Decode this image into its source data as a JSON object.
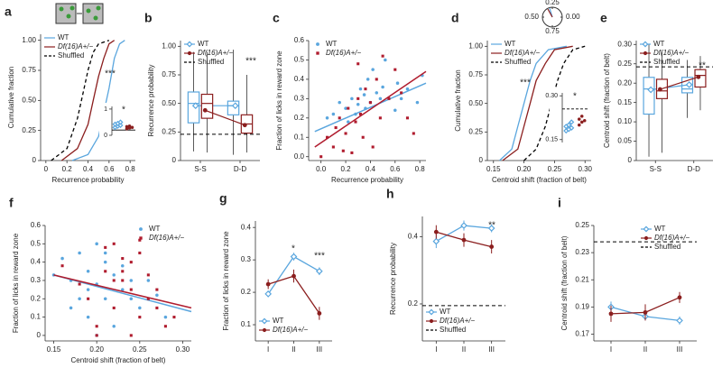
{
  "chart_data": [
    {
      "type": "line",
      "panel_label": "a",
      "xlabel": "Recurrence probability",
      "ylabel": "Cumulative fraction",
      "xlim": [
        -0.05,
        0.85
      ],
      "xticks": [
        0,
        0.2,
        0.4,
        0.6,
        0.8
      ],
      "ylim": [
        0,
        1.05
      ],
      "yticks": [
        0,
        0.25,
        {
          "value": 0.5,
          "label": "0.50"
        },
        0.75,
        {
          "value": 1,
          "label": "1.00"
        }
      ],
      "legend": "upper left",
      "annotations": [
        "***"
      ],
      "series": [
        {
          "name": "WT",
          "color": "#5aa6de",
          "x": [
            0.25,
            0.4,
            0.5,
            0.55,
            0.6,
            0.65,
            0.7,
            0.75
          ],
          "values": [
            0,
            0.05,
            0.2,
            0.4,
            0.6,
            0.85,
            0.97,
            1
          ]
        },
        {
          "name": "Df(16)A+/−",
          "color": "#8b1e1e",
          "x": [
            0.15,
            0.3,
            0.4,
            0.45,
            0.5,
            0.55,
            0.6,
            0.65
          ],
          "values": [
            0,
            0.1,
            0.3,
            0.5,
            0.7,
            0.85,
            0.97,
            1
          ]
        },
        {
          "name": "Shuffled",
          "color": "#000000",
          "style": "dashed",
          "x": [
            0.05,
            0.2,
            0.3,
            0.35,
            0.4,
            0.45,
            0.5,
            0.6
          ],
          "values": [
            0,
            0.1,
            0.35,
            0.55,
            0.75,
            0.9,
            0.97,
            1
          ]
        }
      ]
    },
    {
      "type": "strip",
      "ylim": [
        0,
        1.1
      ],
      "yticks": [
        0,
        1
      ],
      "reference": 0.2,
      "annotations": [
        "*"
      ],
      "series": [
        {
          "color": "#5aa6de",
          "marker": "diamond",
          "values": [
            0.3,
            0.35,
            0.38,
            0.42,
            0.45,
            0.5
          ]
        },
        {
          "color": "#8b1e1e",
          "marker": "circle",
          "values": [
            0.25,
            0.28,
            0.3,
            0.33,
            0.35
          ]
        }
      ]
    },
    {
      "type": "box",
      "panel_label": "b",
      "ylabel": "Recurrence probability",
      "categories": [
        "S-S",
        "D-D"
      ],
      "ylim": [
        0,
        1.05
      ],
      "yticks": [
        0,
        0.25,
        {
          "value": 0.5,
          "label": "0.50"
        },
        0.75,
        {
          "value": 1,
          "label": "1.00"
        }
      ],
      "legend": "upper left",
      "annotations": [
        "***"
      ],
      "series": [
        {
          "name": "WT",
          "color": "#5aa6de",
          "marker": "diamond",
          "means": [
            0.48,
            0.48
          ],
          "boxes": [
            {
              "min": 0.08,
              "q1": 0.33,
              "median": 0.5,
              "q3": 0.6,
              "max": 0.95
            },
            {
              "min": 0.05,
              "q1": 0.4,
              "median": 0.48,
              "q3": 0.52,
              "max": 0.97
            }
          ]
        },
        {
          "name": "Df(16)A+/−",
          "color": "#8b1e1e",
          "marker": "circle",
          "means": [
            0.44,
            0.31
          ],
          "boxes": [
            {
              "min": 0.07,
              "q1": 0.37,
              "median": 0.5,
              "q3": 0.58,
              "max": 0.95
            },
            {
              "min": 0.07,
              "q1": 0.24,
              "median": 0.32,
              "q3": 0.4,
              "max": 0.75
            }
          ]
        },
        {
          "name": "Shuffled",
          "color": "#000000",
          "style": "dashed",
          "hline": 0.23
        }
      ]
    },
    {
      "type": "scatter",
      "panel_label": "c",
      "xlabel": "Recurrence probability",
      "ylabel": "Fraction of licks in reward zone",
      "xlim": [
        -0.1,
        0.85
      ],
      "xticks": [
        {
          "value": 0,
          "label": "0.0"
        },
        0.2,
        0.4,
        0.6,
        0.8
      ],
      "ylim": [
        -0.02,
        0.6
      ],
      "yticks": [
        {
          "value": 0,
          "label": "0.0"
        },
        0.1,
        0.2,
        0.3,
        0.4,
        0.5,
        0.6
      ],
      "legend": "upper left",
      "series": [
        {
          "name": "WT",
          "color": "#5aa6de",
          "marker": "circle",
          "x": [
            0.05,
            0.1,
            0.15,
            0.2,
            0.22,
            0.25,
            0.28,
            0.3,
            0.32,
            0.35,
            0.36,
            0.38,
            0.4,
            0.42,
            0.45,
            0.48,
            0.5,
            0.52,
            0.55,
            0.6,
            0.62,
            0.65,
            0.7,
            0.78,
            0.82
          ],
          "values": [
            0.2,
            0.22,
            0.28,
            0.25,
            0.18,
            0.3,
            0.22,
            0.27,
            0.35,
            0.32,
            0.25,
            0.4,
            0.28,
            0.45,
            0.33,
            0.3,
            0.36,
            0.5,
            0.3,
            0.24,
            0.38,
            0.3,
            0.35,
            0.28,
            0.42
          ],
          "fit": {
            "x": [
              -0.05,
              0.85
            ],
            "y": [
              0.13,
              0.38
            ]
          }
        },
        {
          "name": "Df(16)A+/−",
          "color": "#b01c2e",
          "marker": "square",
          "x": [
            0.0,
            0.05,
            0.1,
            0.12,
            0.15,
            0.18,
            0.2,
            0.22,
            0.25,
            0.28,
            0.3,
            0.32,
            0.34,
            0.36,
            0.4,
            0.42,
            0.45,
            0.48,
            0.5,
            0.55,
            0.6,
            0.65,
            0.7,
            0.75,
            0.3
          ],
          "values": [
            0.0,
            0.1,
            0.05,
            0.15,
            0.2,
            0.03,
            0.12,
            0.25,
            0.02,
            0.18,
            0.3,
            0.22,
            0.1,
            0.35,
            0.28,
            0.05,
            0.4,
            0.2,
            0.52,
            0.3,
            0.45,
            0.33,
            0.2,
            0.12,
            0.48
          ],
          "fit": {
            "x": [
              -0.05,
              0.85
            ],
            "y": [
              0.05,
              0.44
            ]
          }
        }
      ]
    },
    {
      "type": "line",
      "panel_label": "d",
      "xlabel": "Centroid shift (fraction of belt)",
      "ylabel": "Cumulative fraction",
      "xlim": [
        0.14,
        0.31
      ],
      "xticks": [
        0.15,
        {
          "value": 0.2,
          "label": "0.20"
        },
        0.25,
        {
          "value": 0.3,
          "label": "0.30"
        }
      ],
      "ylim": [
        0,
        1.05
      ],
      "yticks": [
        0,
        0.25,
        {
          "value": 0.5,
          "label": "0.50"
        },
        0.75,
        {
          "value": 1,
          "label": "1.00"
        }
      ],
      "legend": "upper left",
      "annotations": [
        "***"
      ],
      "series": [
        {
          "name": "WT",
          "color": "#5aa6de",
          "x": [
            0.16,
            0.18,
            0.19,
            0.2,
            0.21,
            0.22,
            0.24,
            0.27
          ],
          "values": [
            0,
            0.1,
            0.3,
            0.5,
            0.7,
            0.85,
            0.97,
            1
          ]
        },
        {
          "name": "Df(16)A+/−",
          "color": "#8b1e1e",
          "x": [
            0.165,
            0.19,
            0.2,
            0.21,
            0.22,
            0.235,
            0.25,
            0.28
          ],
          "values": [
            0,
            0.1,
            0.3,
            0.5,
            0.7,
            0.85,
            0.97,
            1
          ]
        },
        {
          "name": "Shuffled",
          "color": "#000000",
          "style": "dashed",
          "x": [
            0.2,
            0.22,
            0.235,
            0.245,
            0.255,
            0.265,
            0.28,
            0.3
          ],
          "values": [
            0,
            0.1,
            0.3,
            0.5,
            0.7,
            0.85,
            0.97,
            1
          ]
        }
      ]
    },
    {
      "type": "polar",
      "ticks": [
        {
          "value": 0,
          "label": "0.00"
        },
        0.25,
        {
          "value": 0.5,
          "label": "0.50"
        },
        0.75
      ]
    },
    {
      "type": "strip",
      "ylim": [
        0.14,
        0.31
      ],
      "yticks": [
        0.15,
        {
          "value": 0.3,
          "label": "0.30"
        }
      ],
      "reference": 0.255,
      "reference_style": "dashed",
      "annotations": [
        "*"
      ],
      "series": [
        {
          "color": "#5aa6de",
          "marker": "diamond",
          "values": [
            0.18,
            0.185,
            0.19,
            0.195,
            0.2,
            0.21
          ]
        },
        {
          "color": "#8b1e1e",
          "marker": "circle",
          "values": [
            0.2,
            0.21,
            0.215,
            0.22,
            0.23
          ]
        }
      ]
    },
    {
      "type": "box",
      "panel_label": "e",
      "ylabel": "Centroid shift (fraction of belt)",
      "categories": [
        "S-S",
        "D-D"
      ],
      "ylim": [
        0,
        0.31
      ],
      "yticks": [
        0,
        0.05,
        {
          "value": 0.1,
          "label": "0.10"
        },
        0.15,
        {
          "value": 0.2,
          "label": "0.20"
        },
        0.25,
        {
          "value": 0.3,
          "label": "0.30"
        }
      ],
      "legend": "upper left",
      "annotations": [
        "**"
      ],
      "series": [
        {
          "name": "WT",
          "color": "#5aa6de",
          "marker": "diamond",
          "means": [
            0.183,
            0.196
          ],
          "boxes": [
            {
              "min": 0.01,
              "q1": 0.12,
              "median": 0.185,
              "q3": 0.215,
              "max": 0.3
            },
            {
              "min": 0.11,
              "q1": 0.175,
              "median": 0.185,
              "q3": 0.215,
              "max": 0.26
            }
          ]
        },
        {
          "name": "Df(16)A+/−",
          "color": "#8b1e1e",
          "marker": "circle",
          "means": [
            0.184,
            0.216
          ],
          "boxes": [
            {
              "min": 0.02,
              "q1": 0.16,
              "median": 0.18,
              "q3": 0.21,
              "max": 0.28
            },
            {
              "min": 0.13,
              "q1": 0.19,
              "median": 0.22,
              "q3": 0.235,
              "max": 0.27
            }
          ]
        },
        {
          "name": "Shuffled",
          "color": "#000000",
          "style": "dashed",
          "hline": 0.242
        }
      ]
    },
    {
      "type": "scatter",
      "panel_label": "f",
      "xlabel": "Centroid shift (fraction of belt)",
      "ylabel": "Fraction of licks in reward zone",
      "xlim": [
        0.14,
        0.31
      ],
      "xticks": [
        0.15,
        {
          "value": 0.2,
          "label": "0.20"
        },
        0.25,
        {
          "value": 0.3,
          "label": "0.30"
        }
      ],
      "ylim": [
        -0.03,
        0.6
      ],
      "yticks": [
        0,
        0.1,
        0.2,
        0.3,
        0.4,
        0.5,
        0.6
      ],
      "legend": "upper right",
      "series": [
        {
          "name": "WT",
          "color": "#5aa6de",
          "marker": "circle",
          "x": [
            0.15,
            0.16,
            0.17,
            0.18,
            0.18,
            0.19,
            0.19,
            0.2,
            0.2,
            0.21,
            0.21,
            0.22,
            0.22,
            0.23,
            0.23,
            0.24,
            0.25,
            0.26,
            0.27,
            0.28,
            0.19,
            0.2,
            0.17,
            0.21,
            0.24
          ],
          "values": [
            0.33,
            0.42,
            0.3,
            0.45,
            0.2,
            0.35,
            0.1,
            0.5,
            0.28,
            0.4,
            0.2,
            0.33,
            0.05,
            0.25,
            0.38,
            0.2,
            0.15,
            0.3,
            0.22,
            0.1,
            0.25,
            0.0,
            0.15,
            0.45,
            0.3
          ],
          "fit": {
            "x": [
              0.15,
              0.31
            ],
            "y": [
              0.33,
              0.13
            ]
          }
        },
        {
          "name": "Df(16)A+/−",
          "color": "#b01c2e",
          "marker": "square",
          "x": [
            0.16,
            0.18,
            0.19,
            0.2,
            0.21,
            0.22,
            0.22,
            0.23,
            0.23,
            0.24,
            0.24,
            0.25,
            0.25,
            0.26,
            0.26,
            0.27,
            0.28,
            0.29,
            0.2,
            0.21,
            0.22,
            0.24,
            0.25,
            0.23,
            0.27
          ],
          "values": [
            0.38,
            0.28,
            0.2,
            0.05,
            0.35,
            0.5,
            0.15,
            0.42,
            0.3,
            0.25,
            0.4,
            0.52,
            0.1,
            0.33,
            0.2,
            0.25,
            0.05,
            0.1,
            0.0,
            0.48,
            0.3,
            0.0,
            0.45,
            0.35,
            0.15
          ],
          "fit": {
            "x": [
              0.15,
              0.31
            ],
            "y": [
              0.33,
              0.15
            ]
          }
        }
      ]
    },
    {
      "type": "line",
      "panel_label": "g",
      "ylabel": "Fraction of licks in reward zone",
      "categories": [
        "I",
        "II",
        "III"
      ],
      "ylim": [
        0.05,
        0.42
      ],
      "yticks": [
        0.1,
        0.2,
        0.3,
        0.4
      ],
      "legend": "lower left",
      "annotations": [
        "*",
        "***"
      ],
      "series": [
        {
          "name": "WT",
          "color": "#5aa6de",
          "marker": "diamond",
          "values": [
            0.195,
            0.31,
            0.265
          ],
          "errors": [
            0.01,
            0.012,
            0.012
          ]
        },
        {
          "name": "Df(16)A+/−",
          "color": "#8b1e1e",
          "marker": "circle",
          "values": [
            0.225,
            0.25,
            0.135
          ],
          "errors": [
            0.015,
            0.02,
            0.02
          ]
        }
      ]
    },
    {
      "type": "line",
      "panel_label": "h",
      "ylabel": "Recurrence probability",
      "categories": [
        "I",
        "II",
        "III"
      ],
      "ylim": [
        0.09,
        0.46
      ],
      "yticks": [
        0.2,
        0.4
      ],
      "legend": "lower left",
      "annotations": [
        "**"
      ],
      "series": [
        {
          "name": "WT",
          "color": "#5aa6de",
          "marker": "diamond",
          "values": [
            0.386,
            0.433,
            0.425
          ],
          "errors": [
            0.02,
            0.015,
            0.012
          ]
        },
        {
          "name": "Df(16)A+/−",
          "color": "#8b1e1e",
          "marker": "circle",
          "values": [
            0.414,
            0.39,
            0.37
          ],
          "errors": [
            0.02,
            0.02,
            0.02
          ]
        },
        {
          "name": "Shuffled",
          "color": "#000000",
          "style": "dashed",
          "hline": 0.195
        }
      ]
    },
    {
      "type": "line",
      "panel_label": "i",
      "ylabel": "Centroid shift (fraction of belt)",
      "categories": [
        "I",
        "II",
        "III"
      ],
      "ylim": [
        0.165,
        0.25
      ],
      "yticks": [
        0.17,
        0.19,
        0.21,
        0.23,
        0.25
      ],
      "legend": "upper right",
      "series": [
        {
          "name": "WT",
          "color": "#5aa6de",
          "marker": "diamond",
          "values": [
            0.19,
            0.183,
            0.18
          ],
          "errors": [
            0.004,
            0.003,
            0.003
          ]
        },
        {
          "name": "Df(16)A+/−",
          "color": "#8b1e1e",
          "marker": "circle",
          "values": [
            0.185,
            0.186,
            0.197
          ],
          "errors": [
            0.006,
            0.006,
            0.004
          ]
        },
        {
          "name": "Shuffled",
          "color": "#000000",
          "style": "dashed",
          "hline": 0.238
        }
      ]
    }
  ]
}
